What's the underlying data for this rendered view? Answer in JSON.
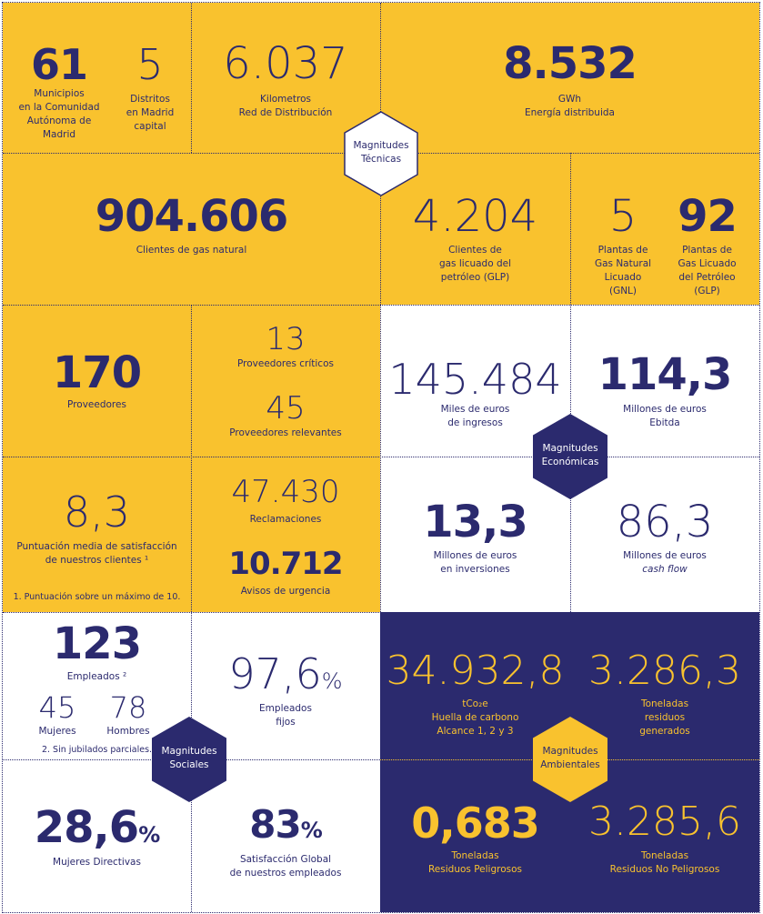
{
  "colors": {
    "yellow": "#f9c22e",
    "navy": "#2b2a6e",
    "white": "#ffffff"
  },
  "hexagons": {
    "tecnicas": [
      "Magnitudes",
      "Técnicas"
    ],
    "economicas": [
      "Magnitudes",
      "Económicas"
    ],
    "sociales": [
      "Magnitudes",
      "Sociales"
    ],
    "ambientales": [
      "Magnitudes",
      "Ambientales"
    ]
  },
  "tecnicas": {
    "municipios": {
      "value": "61",
      "label": [
        "Municipios",
        "en la Comunidad",
        "Autónoma de",
        "Madrid"
      ]
    },
    "distritos": {
      "value": "5",
      "label": [
        "Distritos",
        "en Madrid",
        "capital"
      ]
    },
    "kilometros": {
      "value": "6.037",
      "label": [
        "Kilometros",
        "Red de Distribución"
      ]
    },
    "energia": {
      "value": "8.532",
      "label": [
        "GWh",
        "Energía distribuida"
      ]
    },
    "clientes_gas": {
      "value": "904.606",
      "label": [
        "Clientes de gas natural"
      ]
    },
    "clientes_glp": {
      "value": "4.204",
      "label": [
        "Clientes de",
        "gas licuado del",
        "petróleo (GLP)"
      ]
    },
    "plantas_gnl": {
      "value": "5",
      "label": [
        "Plantas de",
        "Gas Natural",
        "Licuado",
        "(GNL)"
      ]
    },
    "plantas_glp": {
      "value": "92",
      "label": [
        "Plantas de",
        "Gas Licuado",
        "del Petróleo",
        "(GLP)"
      ]
    }
  },
  "proveedores": {
    "total": {
      "value": "170",
      "label": "Proveedores"
    },
    "criticos": {
      "value": "13",
      "label": "Proveedores críticos"
    },
    "relevantes": {
      "value": "45",
      "label": "Proveedores relevantes"
    }
  },
  "clientes": {
    "satisfaccion": {
      "value": "8,3",
      "label": [
        "Puntuación media de satisfacción",
        "de nuestros clientes ¹"
      ]
    },
    "nota": "1.  Puntuación sobre un máximo de 10.",
    "reclamaciones": {
      "value": "47.430",
      "label": "Reclamaciones"
    },
    "avisos": {
      "value": "10.712",
      "label": "Avisos de urgencia"
    }
  },
  "economicas": {
    "ingresos": {
      "value": "145.484",
      "label": [
        "Miles de euros",
        "de ingresos"
      ]
    },
    "ebitda": {
      "value": "114,3",
      "label": [
        "Millones de euros",
        "Ebitda"
      ]
    },
    "inversiones": {
      "value": "13,3",
      "label": [
        "Millones de euros",
        "en inversiones"
      ]
    },
    "cashflow": {
      "value": "86,3",
      "label": [
        "Millones de euros",
        "cash flow"
      ]
    }
  },
  "sociales": {
    "empleados": {
      "value": "123",
      "label": "Empleados ²"
    },
    "mujeres": {
      "value": "45",
      "label": "Mujeres"
    },
    "hombres": {
      "value": "78",
      "label": "Hombres"
    },
    "nota": "2. Sin jubilados parciales.",
    "fijos": {
      "value": "97,6",
      "suffix": "%",
      "label": [
        "Empleados",
        "fijos"
      ]
    },
    "directivas": {
      "value": "28,6",
      "suffix": "%",
      "label": "Mujeres Directivas"
    },
    "satisfaccion": {
      "value": "83",
      "suffix": "%",
      "label": [
        "Satisfacción Global",
        "de nuestros empleados"
      ]
    }
  },
  "ambientales": {
    "huella": {
      "value": "34.932,8",
      "label": [
        "tCo₂e",
        "Huella de carbono",
        "Alcance 1, 2 y 3"
      ]
    },
    "residuos_generados": {
      "value": "3.286,3",
      "label": [
        "Toneladas",
        "residuos",
        "generados"
      ]
    },
    "peligrosos": {
      "value": "0,683",
      "label": [
        "Toneladas",
        "Residuos Peligrosos"
      ]
    },
    "no_peligrosos": {
      "value": "3.285,6",
      "label": [
        "Toneladas",
        "Residuos No Peligrosos"
      ]
    }
  }
}
